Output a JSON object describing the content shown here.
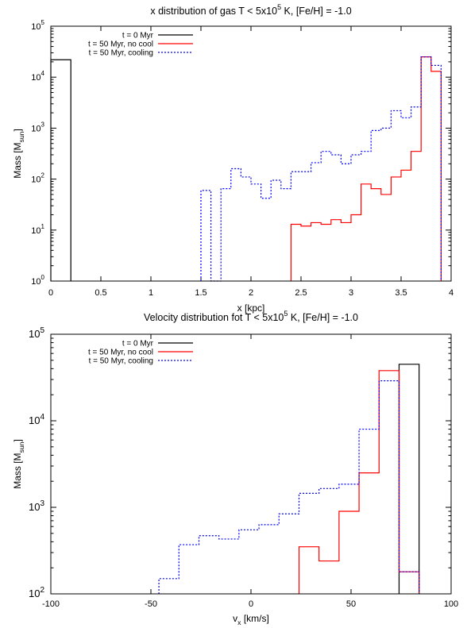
{
  "chart_data": [
    {
      "type": "histogram-step",
      "title_parts": {
        "pre": "x distribution of gas T < 5x10",
        "sup": "5",
        "post": " K, [Fe/H] = -1.0"
      },
      "xlabel": "x [kpc]",
      "ylabel_parts": {
        "pre": "Mass [M",
        "sub": "sun",
        "post": "]"
      },
      "x_log": false,
      "y_log": true,
      "xlim": [
        0,
        4
      ],
      "ylim": [
        1,
        100000
      ],
      "x_ticks": [
        0,
        0.5,
        1,
        1.5,
        2,
        2.5,
        3,
        3.5,
        4
      ],
      "x_tick_labels": [
        "0",
        "0.5",
        "1",
        "1.5",
        "2",
        "2.5",
        "3",
        "3.5",
        "4"
      ],
      "y_tick_exponents": [
        "0",
        "1",
        "2",
        "3",
        "4",
        "5"
      ],
      "legend_position": "top-left",
      "series": [
        {
          "name": "t = 0 Myr",
          "color": "#000000",
          "dash": "solid",
          "edges": [
            0,
            0.2
          ],
          "values": [
            22000
          ]
        },
        {
          "name": "t = 50 Myr, no cool",
          "color": "#ff0000",
          "dash": "solid",
          "edges": [
            2.4,
            2.5,
            2.6,
            2.7,
            2.8,
            2.9,
            3.0,
            3.1,
            3.2,
            3.3,
            3.4,
            3.5,
            3.6,
            3.7,
            3.8,
            3.9
          ],
          "values": [
            13,
            12,
            14,
            13,
            16,
            14,
            20,
            80,
            65,
            50,
            110,
            150,
            350,
            25000,
            13000
          ]
        },
        {
          "name": "t = 50 Myr, cooling",
          "color": "#0000ff",
          "dash": "dotted",
          "edges": [
            1.5,
            1.6,
            1.7,
            1.8,
            1.9,
            2.0,
            2.1,
            2.2,
            2.3,
            2.4,
            2.5,
            2.6,
            2.7,
            2.8,
            2.9,
            3.0,
            3.1,
            3.2,
            3.3,
            3.4,
            3.5,
            3.6,
            3.7,
            3.8,
            3.9
          ],
          "values": [
            60,
            0,
            65,
            160,
            110,
            80,
            42,
            95,
            65,
            140,
            140,
            210,
            350,
            300,
            200,
            300,
            350,
            900,
            1000,
            2200,
            1600,
            2600,
            25000,
            17000
          ]
        }
      ]
    },
    {
      "type": "histogram-step",
      "title_parts": {
        "pre": "Velocity distribution fot T < 5x10",
        "sup": "5",
        "post": " K, [Fe/H] = -1.0"
      },
      "xlabel_parts": {
        "pre": "v",
        "sub": "x",
        "post": " [km/s]"
      },
      "ylabel_parts": {
        "pre": "Mass [M",
        "sub": "sun",
        "post": "]"
      },
      "x_log": false,
      "y_log": true,
      "xlim": [
        -100,
        100
      ],
      "ylim": [
        100,
        100000
      ],
      "x_ticks": [
        -100,
        -50,
        0,
        50,
        100
      ],
      "x_tick_labels": [
        "-100",
        "-50",
        "0",
        "50",
        "100"
      ],
      "y_tick_exponents": [
        "2",
        "3",
        "4",
        "5"
      ],
      "legend_position": "top-left",
      "series": [
        {
          "name": "t = 0 Myr",
          "color": "#000000",
          "dash": "solid",
          "edges": [
            74,
            84
          ],
          "values": [
            45000
          ]
        },
        {
          "name": "t = 50 Myr, no cool",
          "color": "#ff0000",
          "dash": "solid",
          "edges": [
            24,
            34,
            44,
            54,
            64,
            74,
            84
          ],
          "values": [
            350,
            240,
            900,
            2500,
            38000,
            180
          ]
        },
        {
          "name": "t = 50 Myr, cooling",
          "color": "#0000ff",
          "dash": "dotted",
          "edges": [
            -46,
            -36,
            -26,
            -16,
            -6,
            4,
            14,
            24,
            34,
            44,
            54,
            64,
            74,
            84
          ],
          "values": [
            150,
            370,
            470,
            430,
            550,
            630,
            840,
            1450,
            1650,
            1850,
            8000,
            29000,
            180
          ]
        }
      ]
    }
  ]
}
